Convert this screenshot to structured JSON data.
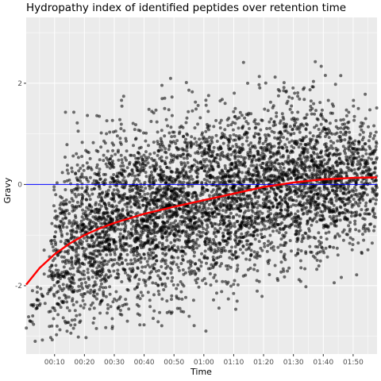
{
  "chart_data": {
    "type": "scatter",
    "title": "Hydropathy index of identified peptides over retention time",
    "xlabel": "Time",
    "ylabel": "Gravy",
    "x_unit": "minutes",
    "xlim": [
      0.5,
      118.0
    ],
    "ylim": [
      -3.35,
      3.3
    ],
    "x_ticks": [
      {
        "value": 10,
        "label": "00:10"
      },
      {
        "value": 20,
        "label": "00:20"
      },
      {
        "value": 30,
        "label": "00:30"
      },
      {
        "value": 40,
        "label": "00:40"
      },
      {
        "value": 50,
        "label": "00:50"
      },
      {
        "value": 60,
        "label": "01:00"
      },
      {
        "value": 70,
        "label": "01:10"
      },
      {
        "value": 80,
        "label": "01:20"
      },
      {
        "value": 90,
        "label": "01:30"
      },
      {
        "value": 100,
        "label": "01:40"
      },
      {
        "value": 110,
        "label": "01:50"
      }
    ],
    "y_ticks": [
      {
        "value": -2,
        "label": "-2"
      },
      {
        "value": 0,
        "label": "0"
      },
      {
        "value": 2,
        "label": "2"
      }
    ],
    "grid": true,
    "background": "#ebebeb",
    "colors": {
      "points": "#000000",
      "trend": "#ff0000",
      "reference": "#0000ff",
      "gridline": "#ffffff"
    },
    "reference_line": {
      "y": 0
    },
    "trend": {
      "x": [
        0.5,
        5,
        10,
        15,
        20,
        25,
        30,
        40,
        50,
        60,
        70,
        80,
        90,
        100,
        110,
        118
      ],
      "y": [
        -1.98,
        -1.65,
        -1.38,
        -1.17,
        -1.0,
        -0.87,
        -0.76,
        -0.58,
        -0.44,
        -0.31,
        -0.18,
        -0.05,
        0.04,
        0.1,
        0.13,
        0.14
      ]
    },
    "points_density": {
      "x": [
        0.5,
        8,
        10,
        20,
        30,
        40,
        50,
        60,
        70,
        80,
        90,
        100,
        110,
        118
      ],
      "mean": [
        -2.5,
        -2.3,
        -1.4,
        -1.0,
        -0.76,
        -0.58,
        -0.44,
        -0.31,
        -0.18,
        -0.05,
        0.04,
        0.1,
        0.13,
        0.14
      ],
      "spread": [
        0.25,
        0.35,
        0.85,
        0.85,
        0.85,
        0.85,
        0.85,
        0.85,
        0.82,
        0.8,
        0.78,
        0.75,
        0.7,
        0.65
      ],
      "relative_density": [
        0.06,
        0.1,
        0.55,
        0.85,
        1.0,
        1.0,
        1.0,
        1.0,
        1.0,
        1.0,
        0.95,
        0.9,
        0.7,
        0.45
      ]
    }
  }
}
